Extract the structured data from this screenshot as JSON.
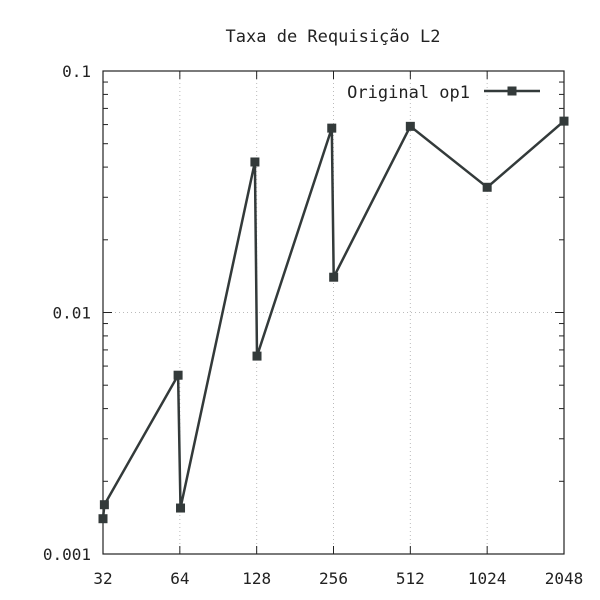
{
  "chart_data": {
    "type": "line",
    "title": "Taxa de Requisição L2",
    "xlabel": "",
    "ylabel": "",
    "x_scale": "log2",
    "y_scale": "log10",
    "xlim": [
      32,
      2048
    ],
    "ylim": [
      0.001,
      0.1
    ],
    "x_ticks": [
      32,
      64,
      128,
      256,
      512,
      1024,
      2048
    ],
    "x_tick_labels": [
      "32",
      "64",
      "128",
      "256",
      "512",
      "1024",
      "2048"
    ],
    "y_ticks": [
      0.001,
      0.01,
      0.1
    ],
    "y_tick_labels": [
      "0.001",
      "0.01",
      "0.1"
    ],
    "grid": true,
    "legend_position": "top-right",
    "series": [
      {
        "name": "Original op1",
        "color": "#333a3a",
        "marker": "square",
        "points": [
          {
            "x": 32,
            "y": 0.0014
          },
          {
            "x": 32.4,
            "y": 0.0016
          },
          {
            "x": 63,
            "y": 0.0055
          },
          {
            "x": 64.4,
            "y": 0.00155
          },
          {
            "x": 126,
            "y": 0.042
          },
          {
            "x": 128.4,
            "y": 0.0066
          },
          {
            "x": 252,
            "y": 0.058
          },
          {
            "x": 256.4,
            "y": 0.014
          },
          {
            "x": 512,
            "y": 0.059
          },
          {
            "x": 1024,
            "y": 0.033
          },
          {
            "x": 2048,
            "y": 0.062
          }
        ]
      }
    ]
  }
}
